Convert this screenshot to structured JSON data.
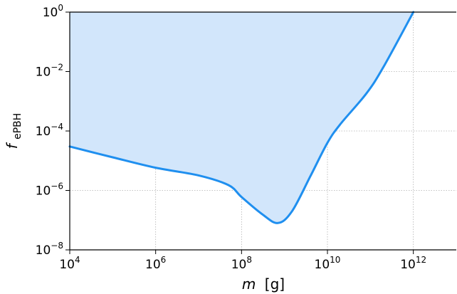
{
  "chart_data": {
    "type": "area",
    "xscale": "log",
    "yscale": "log",
    "xlim": [
      10000,
      10000000000000.0
    ],
    "ylim": [
      1e-08,
      1
    ],
    "grid": true,
    "xlabel": {
      "symbol": "m",
      "unit": "[g]"
    },
    "ylabel": {
      "symbol": "f",
      "subscript": "ePBH"
    },
    "xticks": [
      {
        "value": 10000,
        "base": "10",
        "exp": "4"
      },
      {
        "value": 1000000,
        "base": "10",
        "exp": "6"
      },
      {
        "value": 100000000,
        "base": "10",
        "exp": "8"
      },
      {
        "value": 10000000000,
        "base": "10",
        "exp": "10"
      },
      {
        "value": 1000000000000,
        "base": "10",
        "exp": "12"
      }
    ],
    "yticks": [
      {
        "value": 1,
        "base": "10",
        "exp": "0"
      },
      {
        "value": 0.01,
        "base": "10",
        "exp": "−2"
      },
      {
        "value": 0.0001,
        "base": "10",
        "exp": "−4"
      },
      {
        "value": 1e-06,
        "base": "10",
        "exp": "−6"
      },
      {
        "value": 1e-08,
        "base": "10",
        "exp": "−8"
      }
    ],
    "series": [
      {
        "line_color": "#1f8fef",
        "fill_color": "#d2e6fb",
        "fill": "above",
        "x": [
          10000,
          100000,
          1000000,
          10000000,
          50000000,
          100000000,
          300000000,
          700000000,
          1500000000,
          4000000000,
          10000000000,
          20000000000,
          80000000000,
          200000000000,
          1000000000000
        ],
        "y": [
          3e-05,
          1.3e-05,
          5.8e-06,
          3.2e-06,
          1.5e-06,
          6e-07,
          1.6e-07,
          8e-08,
          2e-07,
          3e-06,
          4e-05,
          0.00017,
          0.0018,
          0.014,
          1
        ]
      }
    ]
  }
}
